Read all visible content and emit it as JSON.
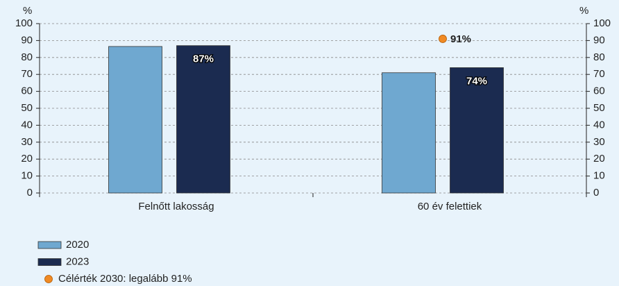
{
  "chart_data": {
    "type": "bar",
    "y_label": "%",
    "y2_label": "%",
    "categories": [
      "Felnőtt lakosság",
      "60 év felettiek"
    ],
    "series": [
      {
        "name": "2020",
        "color": "#6fa8d0",
        "values": [
          86.5,
          71
        ]
      },
      {
        "name": "2023",
        "color": "#1b2b50",
        "values": [
          87,
          74
        ],
        "value_labels": [
          "87%",
          "74%"
        ]
      },
      {
        "name": "Célérték 2030: legalább 91%",
        "type": "marker",
        "color": "#f08a24",
        "values": [
          null,
          91
        ],
        "value_labels": [
          null,
          "91%"
        ]
      }
    ],
    "ylim": [
      0,
      100
    ],
    "yticks": [
      0,
      10,
      20,
      30,
      40,
      50,
      60,
      70,
      80,
      90,
      100
    ],
    "y2lim": [
      0,
      100
    ],
    "y2ticks": [
      0,
      10,
      20,
      30,
      40,
      50,
      60,
      70,
      80,
      90,
      100
    ],
    "grid": true,
    "legend": "bottom-left"
  }
}
